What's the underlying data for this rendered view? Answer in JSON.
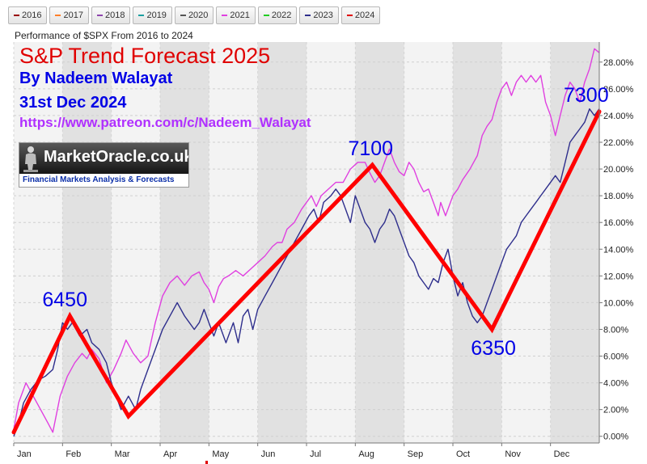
{
  "legend": [
    {
      "label": "2016",
      "color": "#990000"
    },
    {
      "label": "2017",
      "color": "#ff7f2a"
    },
    {
      "label": "2018",
      "color": "#8e44ad"
    },
    {
      "label": "2019",
      "color": "#1a9fa0"
    },
    {
      "label": "2020",
      "color": "#555555"
    },
    {
      "label": "2021",
      "color": "#e040e0"
    },
    {
      "label": "2022",
      "color": "#22cc22"
    },
    {
      "label": "2023",
      "color": "#2e2e8c"
    },
    {
      "label": "2024",
      "color": "#e00000"
    }
  ],
  "subtitle": "Performance of $SPX From 2016 to 2024",
  "overlay": {
    "title": "S&P Trend Forecast 2025",
    "author": "By Nadeem Walayat",
    "date": "31st Dec 2024",
    "url": "https://www.patreon.com/c/Nadeem_Walayat",
    "logo_name": "MarketOracle.co.uk",
    "logo_tagline": "Financial Markets Analysis & Forecasts"
  },
  "chart_data": {
    "type": "line",
    "x_unit": "month of year (0 = Jan 1, 12 = Dec 31)",
    "xlim": [
      0,
      12
    ],
    "ylim": [
      -0.5,
      29.5
    ],
    "y_ticks": [
      0,
      2,
      4,
      6,
      8,
      10,
      12,
      14,
      16,
      18,
      20,
      22,
      24,
      26,
      28
    ],
    "y_tick_format": "percent_2dp",
    "y_axis_position": "right",
    "month_labels": [
      "Jan",
      "Feb",
      "Mar",
      "Apr",
      "May",
      "Jun",
      "Jul",
      "Aug",
      "Sep",
      "Oct",
      "Nov",
      "Dec"
    ],
    "grid": true,
    "alternate_month_shading": true,
    "series": [
      {
        "name": "2021",
        "color": "#e040e0",
        "points": [
          [
            0.0,
            0.5
          ],
          [
            0.1,
            2.5
          ],
          [
            0.25,
            4.0
          ],
          [
            0.4,
            3.0
          ],
          [
            0.55,
            2.0
          ],
          [
            0.7,
            1.0
          ],
          [
            0.8,
            0.3
          ],
          [
            0.95,
            3.0
          ],
          [
            1.1,
            4.5
          ],
          [
            1.25,
            5.5
          ],
          [
            1.4,
            6.2
          ],
          [
            1.5,
            5.8
          ],
          [
            1.6,
            6.5
          ],
          [
            1.75,
            5.8
          ],
          [
            1.9,
            4.0
          ],
          [
            2.05,
            5.0
          ],
          [
            2.2,
            6.2
          ],
          [
            2.3,
            7.2
          ],
          [
            2.45,
            6.2
          ],
          [
            2.6,
            5.5
          ],
          [
            2.75,
            6.0
          ],
          [
            2.9,
            8.5
          ],
          [
            3.05,
            10.5
          ],
          [
            3.2,
            11.5
          ],
          [
            3.35,
            12.0
          ],
          [
            3.5,
            11.3
          ],
          [
            3.65,
            12.0
          ],
          [
            3.8,
            12.3
          ],
          [
            3.9,
            11.5
          ],
          [
            4.0,
            11.0
          ],
          [
            4.1,
            10.0
          ],
          [
            4.2,
            11.2
          ],
          [
            4.3,
            11.8
          ],
          [
            4.4,
            12.0
          ],
          [
            4.55,
            12.4
          ],
          [
            4.7,
            12.0
          ],
          [
            4.85,
            12.5
          ],
          [
            5.0,
            13.0
          ],
          [
            5.15,
            13.5
          ],
          [
            5.3,
            14.2
          ],
          [
            5.4,
            14.5
          ],
          [
            5.5,
            14.5
          ],
          [
            5.6,
            15.5
          ],
          [
            5.75,
            16.0
          ],
          [
            5.9,
            17.0
          ],
          [
            6.0,
            17.5
          ],
          [
            6.1,
            18.0
          ],
          [
            6.2,
            17.2
          ],
          [
            6.3,
            18.0
          ],
          [
            6.45,
            18.5
          ],
          [
            6.6,
            19.0
          ],
          [
            6.75,
            19.0
          ],
          [
            6.9,
            20.0
          ],
          [
            7.05,
            20.5
          ],
          [
            7.2,
            20.5
          ],
          [
            7.3,
            19.7
          ],
          [
            7.4,
            19.0
          ],
          [
            7.5,
            19.5
          ],
          [
            7.6,
            20.5
          ],
          [
            7.7,
            21.5
          ],
          [
            7.8,
            20.5
          ],
          [
            7.9,
            19.8
          ],
          [
            8.0,
            19.5
          ],
          [
            8.1,
            20.5
          ],
          [
            8.2,
            20.0
          ],
          [
            8.3,
            19.0
          ],
          [
            8.4,
            18.3
          ],
          [
            8.5,
            18.5
          ],
          [
            8.6,
            17.5
          ],
          [
            8.7,
            16.5
          ],
          [
            8.75,
            17.5
          ],
          [
            8.85,
            16.5
          ],
          [
            9.0,
            18.0
          ],
          [
            9.1,
            18.5
          ],
          [
            9.2,
            19.2
          ],
          [
            9.35,
            20.0
          ],
          [
            9.5,
            21.0
          ],
          [
            9.6,
            22.5
          ],
          [
            9.7,
            23.2
          ],
          [
            9.8,
            23.7
          ],
          [
            9.9,
            25.0
          ],
          [
            10.0,
            26.0
          ],
          [
            10.1,
            26.5
          ],
          [
            10.2,
            25.5
          ],
          [
            10.3,
            26.5
          ],
          [
            10.4,
            27.0
          ],
          [
            10.5,
            26.5
          ],
          [
            10.6,
            27.0
          ],
          [
            10.7,
            26.5
          ],
          [
            10.8,
            27.0
          ],
          [
            10.9,
            25.0
          ],
          [
            11.0,
            24.0
          ],
          [
            11.1,
            22.5
          ],
          [
            11.2,
            24.0
          ],
          [
            11.3,
            25.5
          ],
          [
            11.4,
            26.5
          ],
          [
            11.5,
            26.0
          ],
          [
            11.6,
            25.0
          ],
          [
            11.7,
            26.5
          ],
          [
            11.8,
            27.5
          ],
          [
            11.9,
            29.0
          ],
          [
            12.0,
            28.7
          ]
        ]
      },
      {
        "name": "2024",
        "color": "#2e2e8c",
        "points": [
          [
            0.0,
            0.0
          ],
          [
            0.1,
            1.0
          ],
          [
            0.2,
            2.5
          ],
          [
            0.35,
            3.5
          ],
          [
            0.5,
            4.2
          ],
          [
            0.65,
            4.5
          ],
          [
            0.8,
            5.0
          ],
          [
            0.9,
            6.5
          ],
          [
            1.0,
            8.5
          ],
          [
            1.1,
            8.0
          ],
          [
            1.2,
            8.5
          ],
          [
            1.35,
            7.5
          ],
          [
            1.5,
            8.0
          ],
          [
            1.6,
            7.0
          ],
          [
            1.75,
            6.5
          ],
          [
            1.9,
            5.5
          ],
          [
            2.0,
            4.0
          ],
          [
            2.1,
            3.0
          ],
          [
            2.2,
            2.0
          ],
          [
            2.35,
            3.0
          ],
          [
            2.5,
            2.0
          ],
          [
            2.6,
            3.5
          ],
          [
            2.75,
            5.0
          ],
          [
            2.9,
            6.5
          ],
          [
            3.05,
            8.0
          ],
          [
            3.2,
            9.0
          ],
          [
            3.35,
            10.0
          ],
          [
            3.5,
            9.0
          ],
          [
            3.6,
            8.5
          ],
          [
            3.7,
            8.0
          ],
          [
            3.8,
            8.5
          ],
          [
            3.9,
            9.5
          ],
          [
            4.0,
            8.5
          ],
          [
            4.1,
            7.5
          ],
          [
            4.2,
            8.5
          ],
          [
            4.35,
            7.0
          ],
          [
            4.5,
            8.5
          ],
          [
            4.6,
            7.0
          ],
          [
            4.7,
            9.0
          ],
          [
            4.8,
            9.5
          ],
          [
            4.9,
            8.0
          ],
          [
            5.0,
            9.5
          ],
          [
            5.15,
            10.5
          ],
          [
            5.3,
            11.5
          ],
          [
            5.45,
            12.5
          ],
          [
            5.6,
            13.5
          ],
          [
            5.75,
            14.5
          ],
          [
            5.9,
            15.5
          ],
          [
            6.05,
            16.5
          ],
          [
            6.15,
            17.0
          ],
          [
            6.25,
            16.0
          ],
          [
            6.35,
            17.5
          ],
          [
            6.5,
            18.0
          ],
          [
            6.6,
            18.5
          ],
          [
            6.7,
            18.0
          ],
          [
            6.8,
            17.0
          ],
          [
            6.9,
            16.0
          ],
          [
            7.0,
            18.0
          ],
          [
            7.1,
            17.0
          ],
          [
            7.2,
            16.0
          ],
          [
            7.3,
            15.5
          ],
          [
            7.4,
            14.5
          ],
          [
            7.5,
            15.5
          ],
          [
            7.6,
            16.0
          ],
          [
            7.7,
            17.0
          ],
          [
            7.8,
            16.5
          ],
          [
            7.9,
            15.5
          ],
          [
            8.0,
            14.5
          ],
          [
            8.1,
            13.5
          ],
          [
            8.2,
            13.0
          ],
          [
            8.3,
            12.0
          ],
          [
            8.4,
            11.5
          ],
          [
            8.5,
            11.0
          ],
          [
            8.6,
            11.8
          ],
          [
            8.7,
            11.5
          ],
          [
            8.8,
            13.0
          ],
          [
            8.9,
            14.0
          ],
          [
            9.0,
            12.0
          ],
          [
            9.1,
            10.5
          ],
          [
            9.2,
            11.5
          ],
          [
            9.3,
            10.0
          ],
          [
            9.4,
            9.0
          ],
          [
            9.5,
            8.5
          ],
          [
            9.6,
            9.0
          ],
          [
            9.7,
            10.0
          ],
          [
            9.8,
            11.0
          ],
          [
            9.9,
            12.0
          ],
          [
            10.0,
            13.0
          ],
          [
            10.1,
            14.0
          ],
          [
            10.2,
            14.5
          ],
          [
            10.3,
            15.0
          ],
          [
            10.4,
            16.0
          ],
          [
            10.5,
            16.5
          ],
          [
            10.6,
            17.0
          ],
          [
            10.7,
            17.5
          ],
          [
            10.8,
            18.0
          ],
          [
            10.9,
            18.5
          ],
          [
            11.0,
            19.0
          ],
          [
            11.1,
            19.5
          ],
          [
            11.2,
            19.0
          ],
          [
            11.3,
            20.5
          ],
          [
            11.4,
            22.0
          ],
          [
            11.5,
            22.5
          ],
          [
            11.6,
            23.0
          ],
          [
            11.7,
            23.5
          ],
          [
            11.8,
            24.5
          ],
          [
            11.9,
            24.0
          ],
          [
            12.0,
            24.5
          ]
        ]
      }
    ],
    "forecast": {
      "name": "S&P Trend Forecast 2025",
      "color": "#ff0000",
      "points": [
        [
          0.0,
          0.3
        ],
        [
          1.15,
          9.0
        ],
        [
          2.35,
          1.5
        ],
        [
          7.35,
          20.3
        ],
        [
          9.8,
          8.0
        ],
        [
          12.0,
          24.3
        ]
      ],
      "labels": [
        {
          "text": "6450",
          "x": 1.15,
          "y": 9.0
        },
        {
          "text": "7100",
          "x": 7.35,
          "y": 20.3
        },
        {
          "text": "6350",
          "x": 9.8,
          "y": 8.0
        },
        {
          "text": "7300",
          "x": 12.0,
          "y": 24.3
        }
      ]
    }
  }
}
